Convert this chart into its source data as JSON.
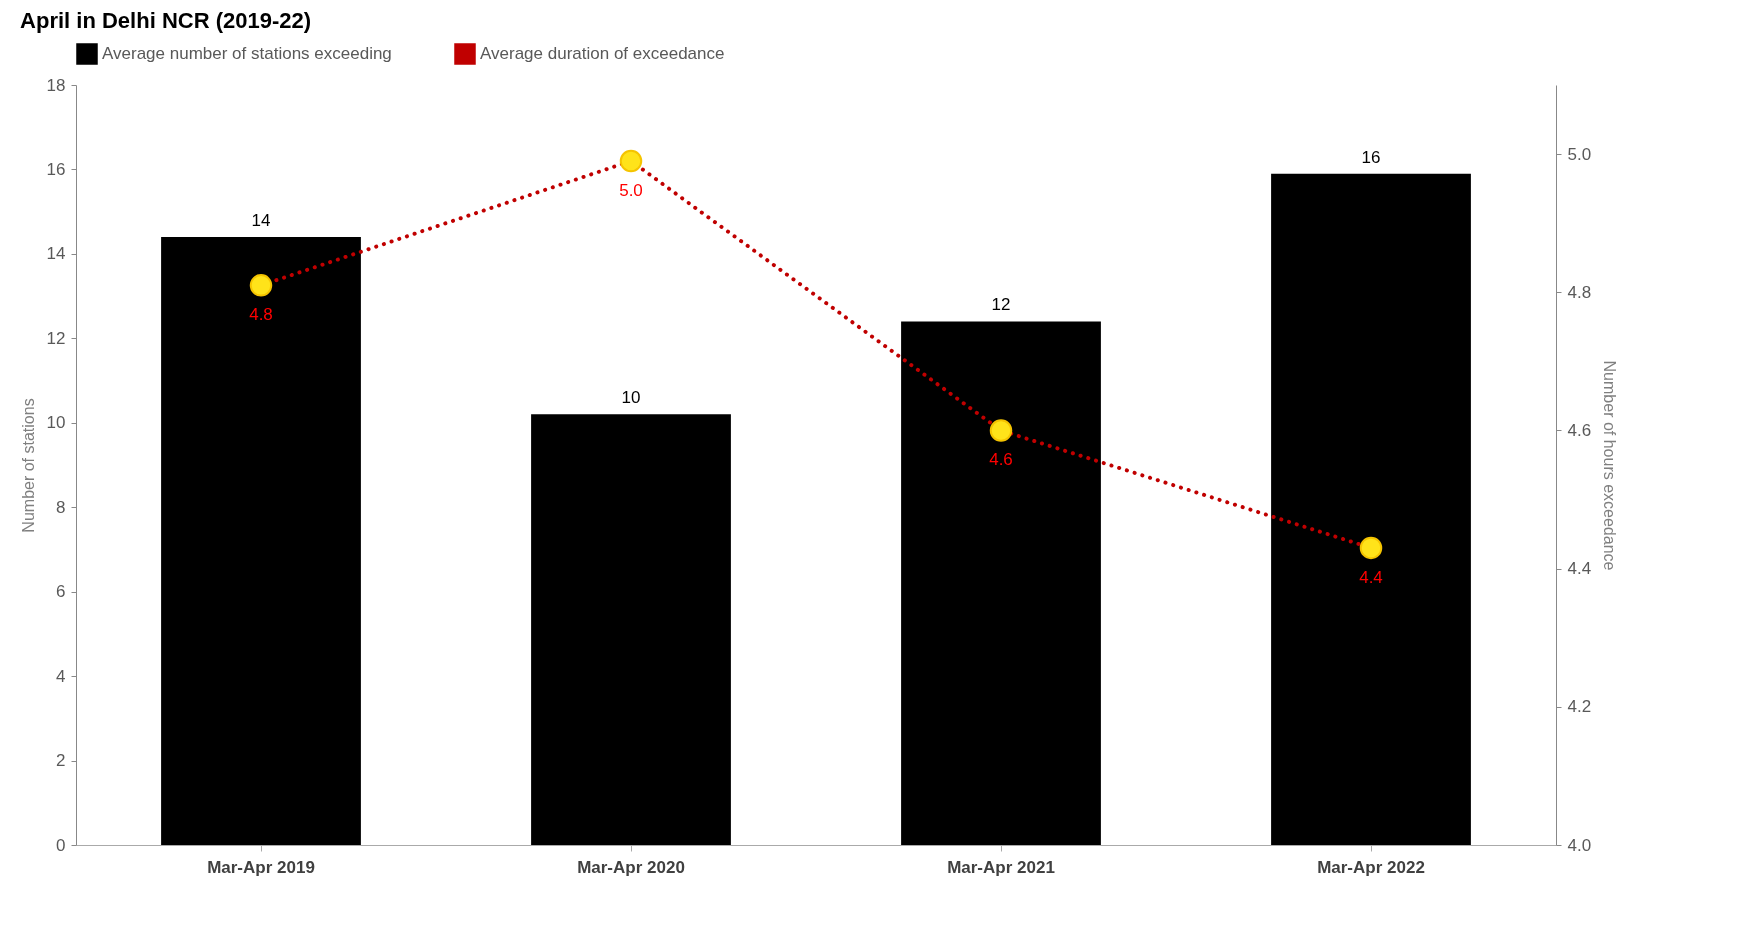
{
  "chart_data": {
    "type": "bar",
    "title": "April in Delhi NCR (2019-22)",
    "categories": [
      "Mar-Apr 2019",
      "Mar-Apr 2020",
      "Mar-Apr 2021",
      "Mar-Apr 2022"
    ],
    "ylabel": "Number of stations",
    "y2label": "Number of hours exceedance",
    "ylim": [
      0,
      18
    ],
    "yticks": [
      0,
      2,
      4,
      6,
      8,
      10,
      12,
      14,
      16,
      18
    ],
    "y2lim": [
      4.0,
      5.1
    ],
    "y2ticks": [
      {
        "value": 4.0,
        "label": "4.0"
      },
      {
        "value": 4.2,
        "label": "4.2"
      },
      {
        "value": 4.4,
        "label": "4.4"
      },
      {
        "value": 4.6,
        "label": "4.6"
      },
      {
        "value": 4.8,
        "label": "4.8"
      },
      {
        "value": 5.0,
        "label": "5.0"
      }
    ],
    "series": [
      {
        "name": "Average number of stations exceeding",
        "color": "#000000",
        "values": [
          14.4,
          10.2,
          12.4,
          15.9
        ],
        "value_labels": [
          "14",
          "10",
          "12",
          "16"
        ]
      },
      {
        "name": "Average duration of exceedance",
        "type": "line",
        "axis": "y2",
        "color": "#c00000",
        "colors": [
          "#ffe31a",
          "#ffe31a",
          "#ffe31a",
          "#ffe31a"
        ],
        "marker": "circle",
        "line_style": "dotted",
        "values": [
          4.81,
          4.99,
          4.6,
          4.43
        ],
        "value_labels": [
          "4.8",
          "5.0",
          "4.6",
          "4.4"
        ]
      }
    ],
    "legend": "top",
    "grid": false
  }
}
